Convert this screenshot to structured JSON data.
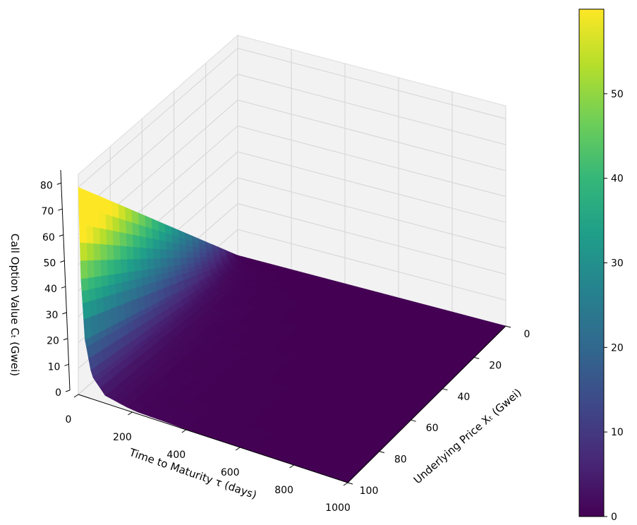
{
  "chart_data": {
    "type": "surface3d",
    "title": "",
    "xlabel": "Time to Maturity τ (days)",
    "ylabel": "Underlying Price Xₜ (Gwei)",
    "zlabel": "Call Option Value Cₜ (Gwei)",
    "colormap": "viridis",
    "x": {
      "range": [
        0,
        1000
      ],
      "ticks": [
        0,
        200,
        400,
        600,
        800,
        1000
      ],
      "tick_labels": [
        "0",
        "200",
        "400",
        "600",
        "800",
        "1000"
      ]
    },
    "y": {
      "range": [
        0,
        100
      ],
      "ticks": [
        0,
        20,
        40,
        60,
        80,
        100
      ],
      "tick_labels": [
        "0",
        "20",
        "40",
        "60",
        "80",
        "100"
      ]
    },
    "z": {
      "range": [
        0,
        85
      ],
      "ticks": [
        0,
        10,
        20,
        30,
        40,
        50,
        60,
        70,
        80
      ],
      "tick_labels": [
        "0",
        "10",
        "20",
        "30",
        "40",
        "50",
        "60",
        "70",
        "80"
      ]
    },
    "colorbar": {
      "range": [
        0,
        60
      ],
      "ticks": [
        0,
        10,
        20,
        30,
        40,
        50
      ],
      "tick_labels": [
        "0",
        "10",
        "20",
        "30",
        "40",
        "50"
      ]
    },
    "surface_profile": {
      "tau": [
        0,
        10,
        25,
        50,
        100,
        200,
        400,
        700,
        1000
      ],
      "value_at_max_price": [
        80,
        45,
        22,
        9,
        3,
        0.8,
        0.2,
        0.05,
        0
      ],
      "value_at_zero_price": [
        0,
        0,
        0,
        0,
        0,
        0,
        0,
        0,
        0
      ]
    },
    "grid": true
  },
  "colors": {
    "viridis": [
      "#440154",
      "#482878",
      "#3e4989",
      "#31688e",
      "#26828e",
      "#1f9e89",
      "#35b779",
      "#6ece58",
      "#b5de2b",
      "#fde725"
    ],
    "pane": "#f2f2f2",
    "grid": "#d4d4d4"
  }
}
